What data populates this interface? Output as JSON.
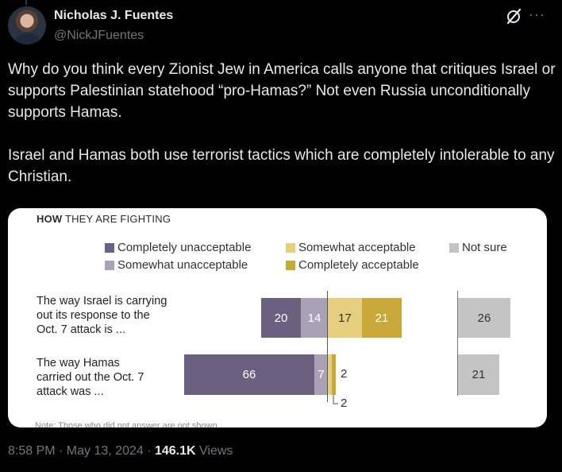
{
  "author": {
    "display_name": "Nicholas J. Fuentes",
    "handle": "@NickJFuentes"
  },
  "icons": {
    "grok": "grok-icon",
    "more": "more-icon"
  },
  "tweet": {
    "text": "Why do you think every Zionist Jew in America calls anyone that critiques Israel or supports Palestinian statehood “pro-Hamas?” Not even Russia unconditionally supports Hamas.\n\nIsrael and Hamas both use terrorist tactics which are completely intolerable to any Christian."
  },
  "chart_data": {
    "type": "bar",
    "title_bold": "HOW",
    "title_rest": " THEY ARE FIGHTING",
    "legend": [
      {
        "label": "Completely unacceptable",
        "color": "#6b6080"
      },
      {
        "label": "Somewhat acceptable",
        "color": "#e5cf7e"
      },
      {
        "label": "Not sure",
        "color": "#c4c4c4"
      },
      {
        "label": "Somewhat unacceptable",
        "color": "#a9a2b6"
      },
      {
        "label": "Completely acceptable",
        "color": "#c9a83a"
      }
    ],
    "categories": [
      "The way Israel is carrying\nout its response to the\nOct. 7 attack is ...",
      "The way Hamas\ncarried out the Oct. 7\nattack was ..."
    ],
    "series": [
      {
        "name": "Completely unacceptable",
        "values": [
          20,
          66
        ]
      },
      {
        "name": "Somewhat unacceptable",
        "values": [
          14,
          7
        ]
      },
      {
        "name": "Somewhat acceptable",
        "values": [
          17,
          2
        ]
      },
      {
        "name": "Completely acceptable",
        "values": [
          21,
          2
        ]
      },
      {
        "name": "Not sure",
        "values": [
          26,
          21
        ]
      }
    ],
    "note": "Note: Those who did not answer are not shown."
  },
  "meta": {
    "time": "8:58 PM · May 13, 2024 · ",
    "views_count": "146.1K",
    "views_label": " Views"
  }
}
